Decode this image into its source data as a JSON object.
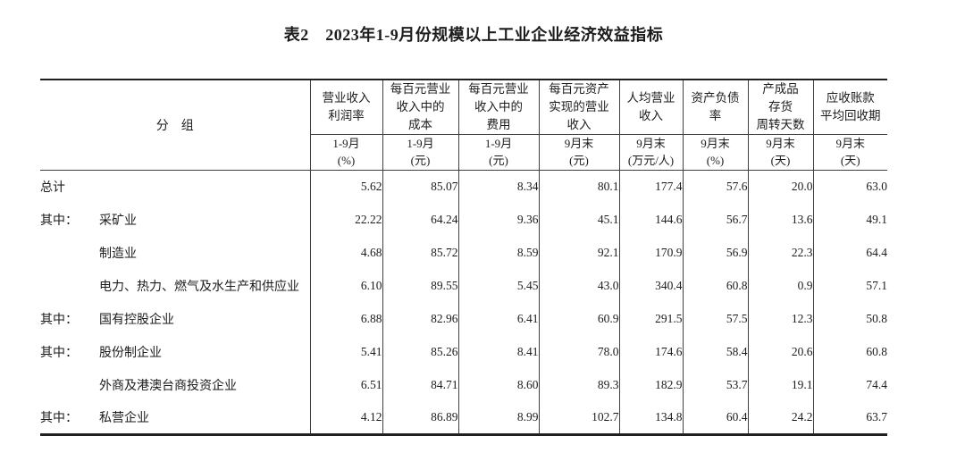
{
  "title": "表2　2023年1-9月份规模以上工业企业经济效益指标",
  "table": {
    "group_header": "分　组",
    "columns": [
      {
        "name": "营业收入\n利润率",
        "period": "1-9月\n(%)"
      },
      {
        "name": "每百元营业\n收入中的\n成本",
        "period": "1-9月\n(元)"
      },
      {
        "name": "每百元营业\n收入中的\n费用",
        "period": "1-9月\n(元)"
      },
      {
        "name": "每百元资产\n实现的营业\n收入",
        "period": "9月末\n(元)"
      },
      {
        "name": "人均营业\n收入",
        "period": "9月末\n(万元/人)"
      },
      {
        "name": "资产负债\n率",
        "period": "9月末\n(%)"
      },
      {
        "name": "产成品\n存货\n周转天数",
        "period": "9月末\n(天)"
      },
      {
        "name": "应收账款\n平均回收期",
        "period": "9月末\n(天)"
      }
    ],
    "rows": [
      {
        "prefix": "",
        "indent": false,
        "label": "总计",
        "values": [
          "5.62",
          "85.07",
          "8.34",
          "80.1",
          "177.4",
          "57.6",
          "20.0",
          "63.0"
        ]
      },
      {
        "prefix": "其中：",
        "indent": false,
        "label": "采矿业",
        "values": [
          "22.22",
          "64.24",
          "9.36",
          "45.1",
          "144.6",
          "56.7",
          "13.6",
          "49.1"
        ]
      },
      {
        "prefix": "",
        "indent": true,
        "label": "制造业",
        "values": [
          "4.68",
          "85.72",
          "8.59",
          "92.1",
          "170.9",
          "56.9",
          "22.3",
          "64.4"
        ]
      },
      {
        "prefix": "",
        "indent": true,
        "label": "电力、热力、燃气及水生产和供应业",
        "values": [
          "6.10",
          "89.55",
          "5.45",
          "43.0",
          "340.4",
          "60.8",
          "0.9",
          "57.1"
        ]
      },
      {
        "prefix": "其中：",
        "indent": false,
        "label": "国有控股企业",
        "values": [
          "6.88",
          "82.96",
          "6.41",
          "60.9",
          "291.5",
          "57.5",
          "12.3",
          "50.8"
        ]
      },
      {
        "prefix": "其中：",
        "indent": false,
        "label": "股份制企业",
        "values": [
          "5.41",
          "85.26",
          "8.41",
          "78.0",
          "174.6",
          "58.4",
          "20.6",
          "60.8"
        ]
      },
      {
        "prefix": "",
        "indent": true,
        "label": "外商及港澳台商投资企业",
        "values": [
          "6.51",
          "84.71",
          "8.60",
          "89.3",
          "182.9",
          "53.7",
          "19.1",
          "74.4"
        ]
      },
      {
        "prefix": "其中：",
        "indent": false,
        "label": "私营企业",
        "values": [
          "4.12",
          "86.89",
          "8.99",
          "102.7",
          "134.8",
          "60.4",
          "24.2",
          "63.7"
        ]
      }
    ]
  }
}
